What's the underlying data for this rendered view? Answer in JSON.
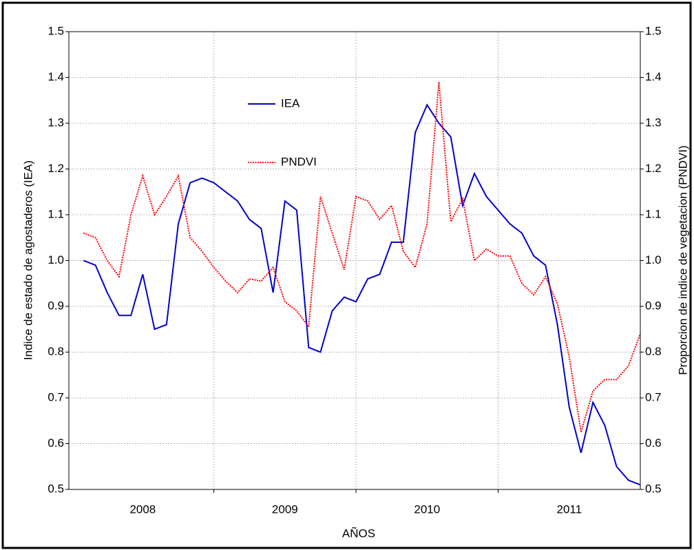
{
  "chart_data": {
    "type": "line",
    "xlabel": "AÑOS",
    "ylabel": "Indice de estado de agostaderos (IEA)",
    "y2label": "Proporcion de indice de vegetacion (PNDVI)",
    "x": [
      2008.083,
      2008.167,
      2008.25,
      2008.333,
      2008.417,
      2008.5,
      2008.583,
      2008.667,
      2008.75,
      2008.833,
      2008.917,
      2009,
      2009.083,
      2009.167,
      2009.25,
      2009.333,
      2009.417,
      2009.5,
      2009.583,
      2009.667,
      2009.75,
      2009.833,
      2009.917,
      2010,
      2010.083,
      2010.167,
      2010.25,
      2010.333,
      2010.417,
      2010.5,
      2010.583,
      2010.667,
      2010.75,
      2010.833,
      2010.917,
      2011,
      2011.083,
      2011.167,
      2011.25,
      2011.333,
      2011.417,
      2011.5,
      2011.583,
      2011.667,
      2011.75,
      2011.833,
      2011.917,
      2012
    ],
    "series": [
      {
        "name": "IEA",
        "color": "#0000cc",
        "values": [
          1.0,
          0.99,
          0.93,
          0.88,
          0.88,
          0.97,
          0.85,
          0.86,
          1.08,
          1.17,
          1.18,
          1.17,
          1.15,
          1.13,
          1.09,
          1.07,
          0.93,
          1.13,
          1.11,
          0.81,
          0.8,
          0.89,
          0.92,
          0.91,
          0.96,
          0.97,
          1.04,
          1.04,
          1.28,
          1.34,
          1.3,
          1.27,
          1.12,
          1.19,
          1.14,
          1.11,
          1.08,
          1.06,
          1.01,
          0.99,
          0.86,
          0.68,
          0.58,
          0.69,
          0.64,
          0.55,
          0.52,
          0.51
        ]
      },
      {
        "name": "PNDVI",
        "color": "#ff0000",
        "axis": "y2",
        "dashed": true,
        "values": [
          1.06,
          1.05,
          1.0,
          0.965,
          1.1,
          1.185,
          1.1,
          1.14,
          1.185,
          1.05,
          1.02,
          0.985,
          0.955,
          0.93,
          0.96,
          0.955,
          0.985,
          0.91,
          0.89,
          0.855,
          1.14,
          1.06,
          0.98,
          1.14,
          1.13,
          1.09,
          1.12,
          1.02,
          0.985,
          1.08,
          1.39,
          1.085,
          1.135,
          1.0,
          1.025,
          1.01,
          1.01,
          0.95,
          0.925,
          0.965,
          0.905,
          0.79,
          0.625,
          0.715,
          0.74,
          0.74,
          0.77,
          0.84
        ]
      }
    ],
    "xlim": [
      2007.98,
      2012.0
    ],
    "xticks": [
      {
        "value": 2008.5,
        "label": "2008"
      },
      {
        "value": 2009.5,
        "label": "2009"
      },
      {
        "value": 2010.5,
        "label": "2010"
      },
      {
        "value": 2011.5,
        "label": "2011"
      }
    ],
    "xgrid": [
      2009,
      2010,
      2011
    ],
    "ylim": [
      0.5,
      1.5
    ],
    "yticks": [
      0.5,
      0.6,
      0.7,
      0.8,
      0.9,
      {
        "value": 1.0,
        "label": "1.0"
      },
      1.1,
      1.2,
      1.3,
      1.4,
      1.5
    ],
    "y2lim": [
      0.5,
      1.5
    ],
    "y2ticks": [
      0.5,
      0.6,
      0.7,
      0.8,
      0.9,
      {
        "value": 1.0,
        "label": "1.0"
      },
      1.1,
      1.2,
      1.3,
      1.4,
      1.5
    ],
    "grid": true,
    "legend": "upper-left"
  }
}
